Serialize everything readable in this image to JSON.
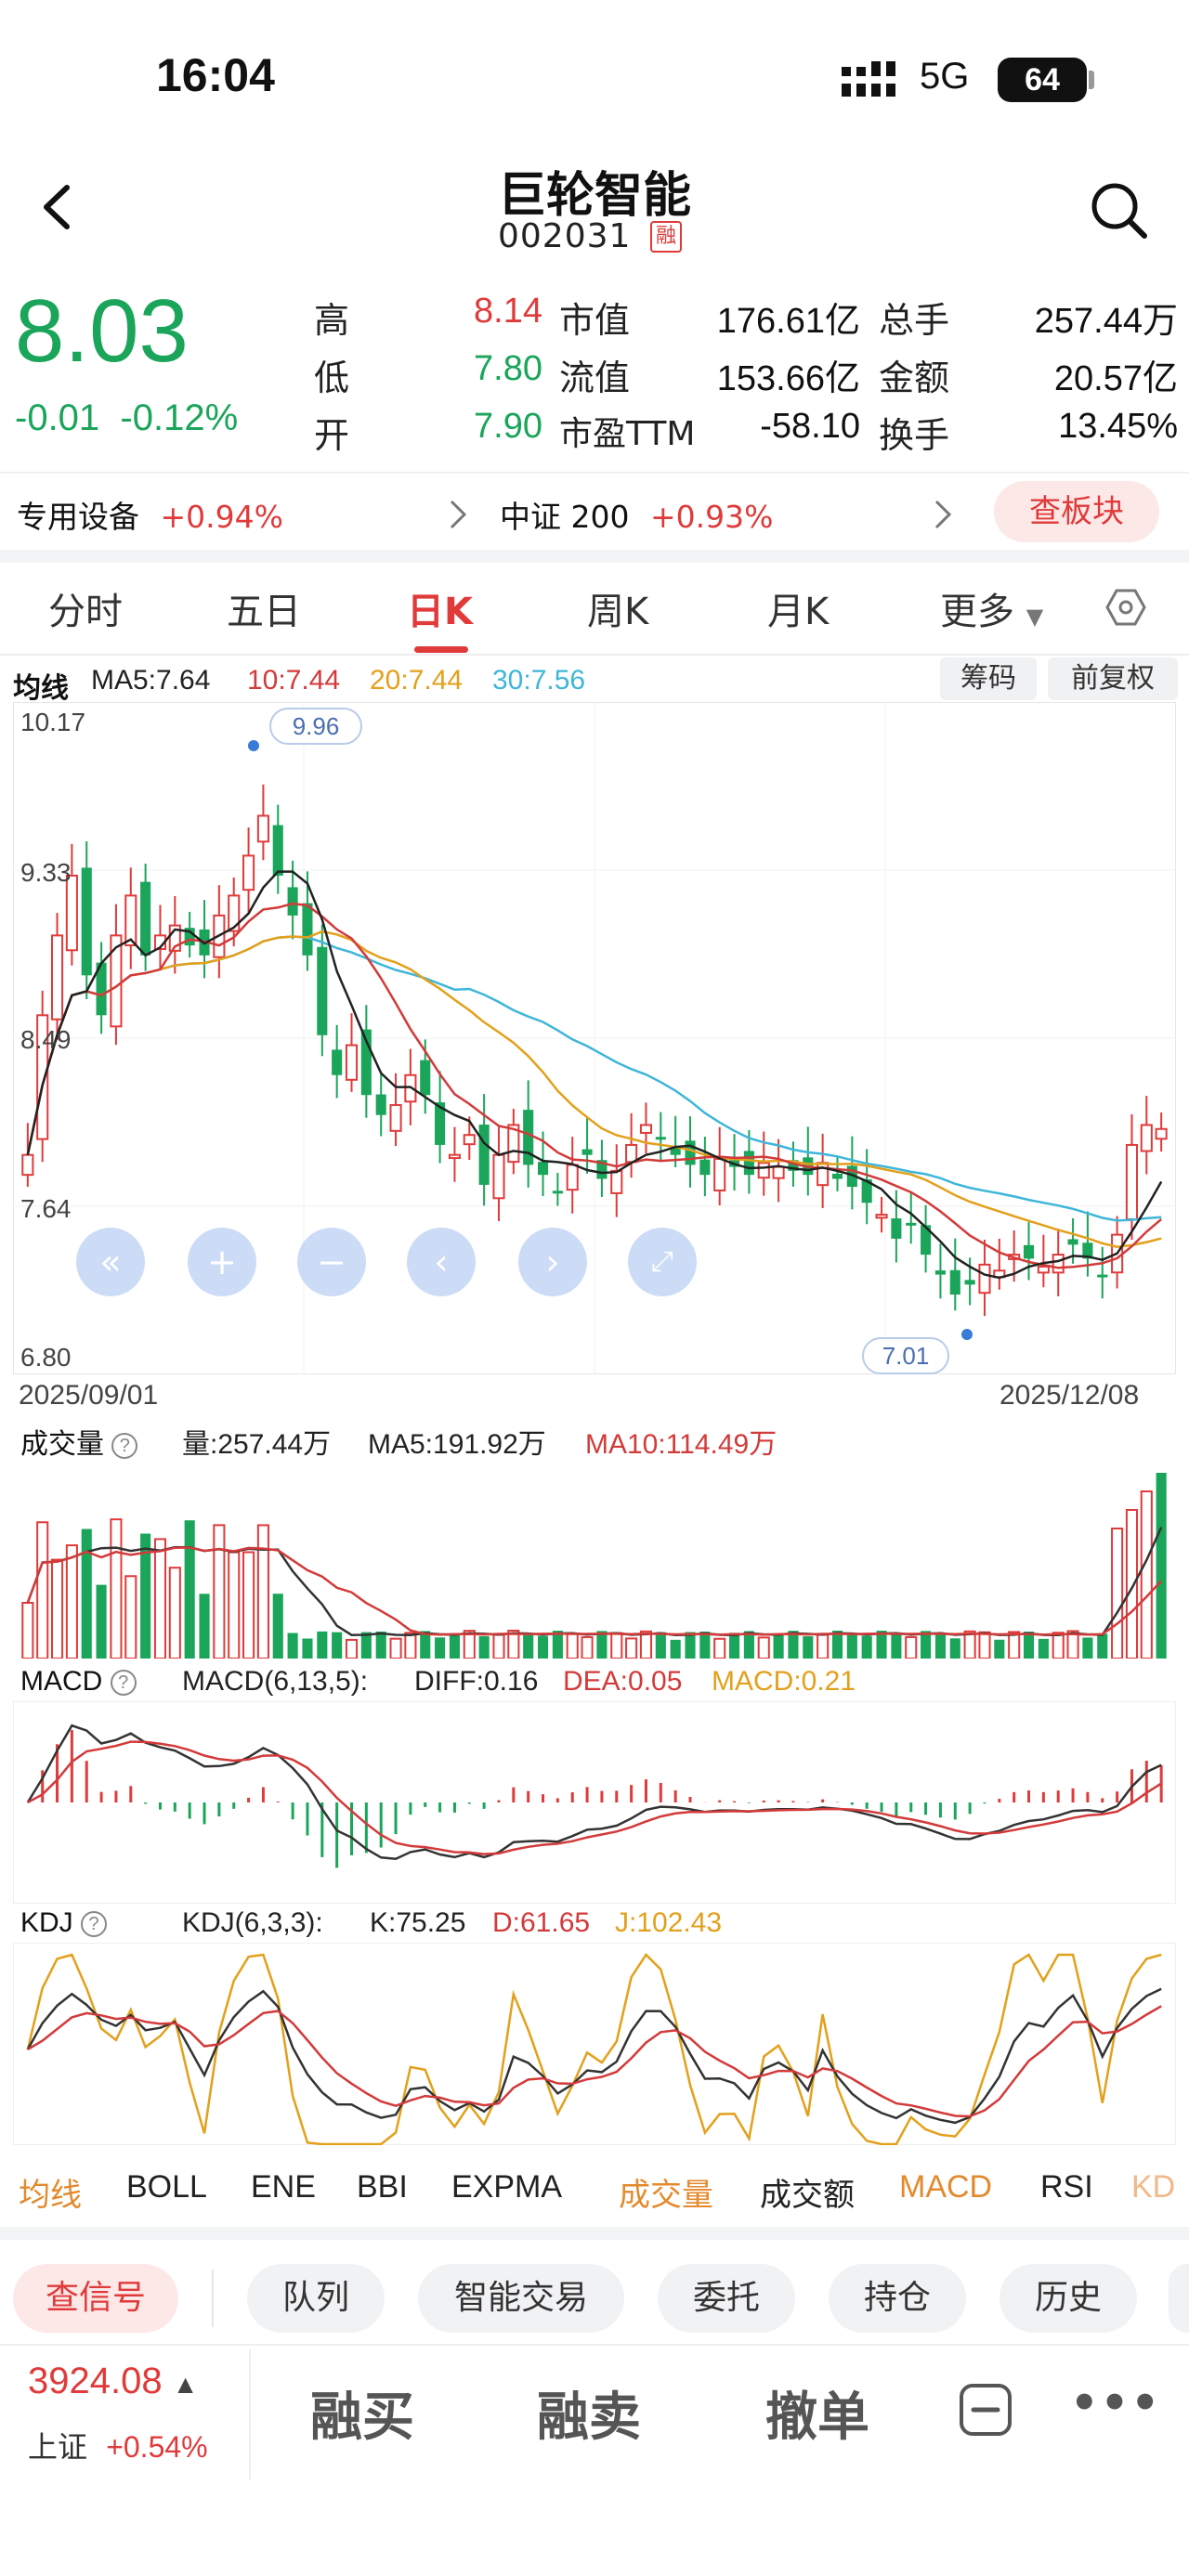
{
  "status": {
    "time": "16:04",
    "network": "5G",
    "battery": "64"
  },
  "header": {
    "title": "巨轮智能",
    "code": "002031",
    "badge": "融"
  },
  "quote": {
    "price": "8.03",
    "change": "-0.01",
    "change_pct": "-0.12%",
    "high_label": "高",
    "high": "8.14",
    "low_label": "低",
    "low": "7.80",
    "open_label": "开",
    "open": "7.90",
    "mktcap_label": "市值",
    "mktcap": "176.61亿",
    "float_label": "流值",
    "float": "153.66亿",
    "pe_label": "市盈TTM",
    "pe": "-58.10",
    "volume_label": "总手",
    "volume": "257.44万",
    "amount_label": "金额",
    "amount": "20.57亿",
    "turnover_label": "换手",
    "turnover": "13.45%"
  },
  "sector": {
    "name": "专用设备",
    "pct": "+0.94%",
    "index_name": "中证 200",
    "index_pct": "+0.93%",
    "button": "查板块"
  },
  "tabs": [
    "分时",
    "五日",
    "日K",
    "周K",
    "月K",
    "更多"
  ],
  "ma": {
    "label": "均线",
    "ma5": "MA5:7.64",
    "ma10": "10:7.44",
    "ma20": "20:7.44",
    "ma30": "30:7.56",
    "chip1": "筹码",
    "chip2": "前复权"
  },
  "colors": {
    "up": "#e03a3a",
    "down": "#1aa55a",
    "ma5": "#222222",
    "ma10": "#d33a3a",
    "ma20": "#e3a01b",
    "ma30": "#3fb6d9"
  },
  "axis": {
    "y1": "10.17",
    "y2": "9.33",
    "y3": "8.49",
    "y4": "7.64",
    "y5": "6.80",
    "date_start": "2025/09/01",
    "date_end": "2025/12/08",
    "max_mark": "9.96",
    "min_mark": "7.01"
  },
  "volume": {
    "label": "成交量",
    "val": "量:257.44万",
    "ma5": "MA5:191.92万",
    "ma10": "MA10:114.49万"
  },
  "macd": {
    "label": "MACD",
    "params": "MACD(6,13,5):",
    "diff": "DIFF:0.16",
    "dea": "DEA:0.05",
    "macd": "MACD:0.21"
  },
  "kdj": {
    "label": "KDJ",
    "params": "KDJ(6,3,3):",
    "k": "K:75.25",
    "d": "D:61.65",
    "j": "J:102.43"
  },
  "indicator_tabs": [
    "均线",
    "BOLL",
    "ENE",
    "BBI",
    "EXPMA",
    "成交量",
    "成交额",
    "MACD",
    "RSI",
    "KD"
  ],
  "actions": [
    "查信号",
    "队列",
    "智能交易",
    "委托",
    "持仓",
    "历史"
  ],
  "bottom": {
    "index_value": "3924.08",
    "index_name": "上证",
    "index_pct": "+0.54%",
    "buy": "融买",
    "sell": "融卖",
    "cancel": "撤单"
  }
}
